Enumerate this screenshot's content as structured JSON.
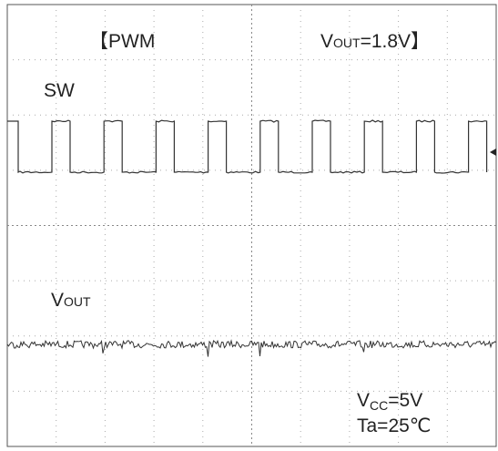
{
  "header": {
    "mode": "【PWM",
    "vout": {
      "main": "V",
      "sub": "OUT",
      "rest": "=1.8V】"
    }
  },
  "traces": [
    {
      "label": {
        "main": "SW"
      }
    },
    {
      "label": {
        "main": "V",
        "sub": "OUT"
      }
    }
  ],
  "conditions": [
    {
      "main": "V",
      "sub": "CC",
      "rest": "=5V"
    },
    {
      "main": "Ta=25℃"
    }
  ]
}
